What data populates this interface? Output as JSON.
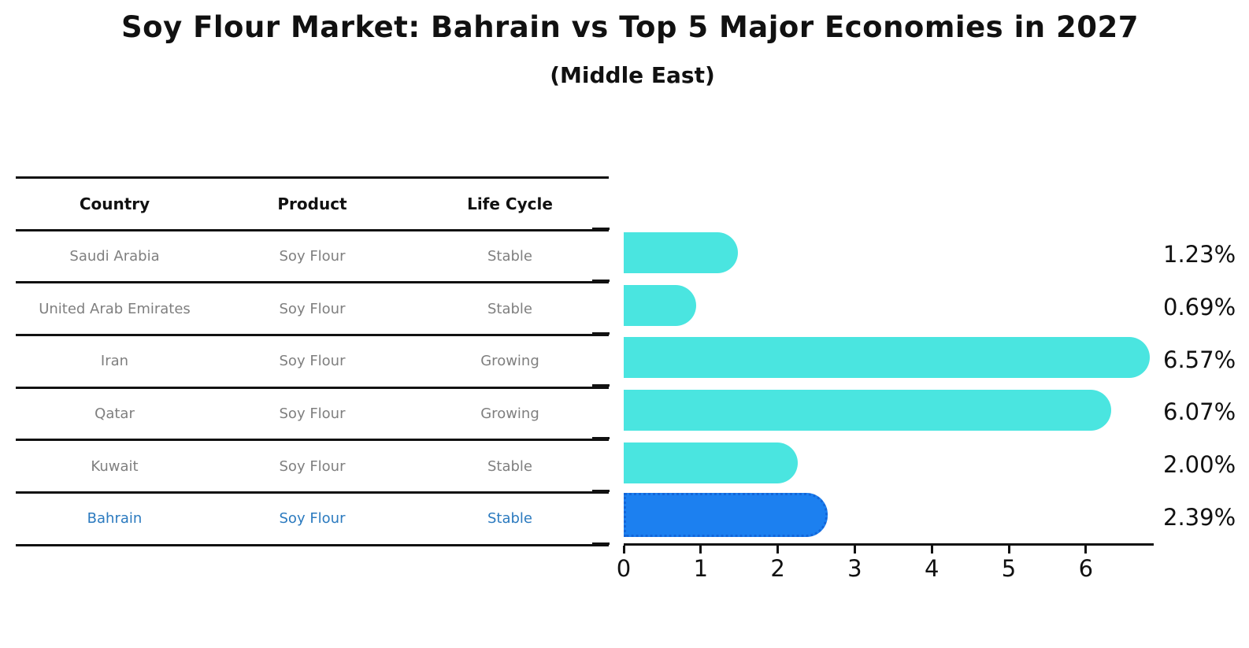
{
  "title": "Soy Flour Market: Bahrain vs Top 5 Major Economies in 2027",
  "subtitle": "(Middle East)",
  "table": {
    "headers": [
      "Country",
      "Product",
      "Life Cycle"
    ],
    "rows": [
      {
        "country": "Saudi Arabia",
        "product": "Soy Flour",
        "life_cycle": "Stable",
        "highlight": false
      },
      {
        "country": "United Arab Emirates",
        "product": "Soy Flour",
        "life_cycle": "Stable",
        "highlight": false
      },
      {
        "country": "Iran",
        "product": "Soy Flour",
        "life_cycle": "Growing",
        "highlight": false
      },
      {
        "country": "Qatar",
        "product": "Soy Flour",
        "life_cycle": "Growing",
        "highlight": false
      },
      {
        "country": "Kuwait",
        "product": "Soy Flour",
        "life_cycle": "Stable",
        "highlight": false
      },
      {
        "country": "Bahrain",
        "product": "Soy Flour",
        "life_cycle": "Stable",
        "highlight": true
      }
    ]
  },
  "chart_data": {
    "type": "bar",
    "orientation": "horizontal",
    "title": "Soy Flour Market: Bahrain vs Top 5 Major Economies in 2027 (Middle East)",
    "categories": [
      "Saudi Arabia",
      "United Arab Emirates",
      "Iran",
      "Qatar",
      "Kuwait",
      "Bahrain"
    ],
    "values": [
      1.23,
      0.69,
      6.57,
      6.07,
      2.0,
      2.39
    ],
    "value_labels": [
      "1.23%",
      "0.69%",
      "6.57%",
      "6.07%",
      "2.00%",
      "2.39%"
    ],
    "x_ticks": [
      "0",
      "1",
      "2",
      "3",
      "4",
      "5",
      "6"
    ],
    "xlim": [
      0,
      6.9
    ],
    "xlabel": "",
    "ylabel": "",
    "grid": false,
    "legend": false,
    "bar_color": "#4AE5E0",
    "highlight_index": 5,
    "highlight_bar_color": "#1C80F0",
    "highlight_border_color": "#1366D9",
    "highlight_text_color": "#2B7ABF"
  },
  "colors": {
    "text": "#111111",
    "muted_text": "#7F7F7F",
    "lines": "#111111",
    "background": "#FFFFFF"
  }
}
